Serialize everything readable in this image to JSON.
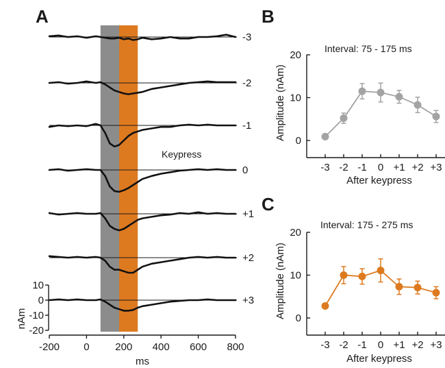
{
  "colors": {
    "gray": "#8c8c8c",
    "orange": "#dd7a1f",
    "trace": "#111111",
    "line_gray": "#a3a3a3"
  },
  "panel_a": {
    "letter": "A",
    "keypress_label": "Keypress",
    "window_gray_ms": [
      75,
      175
    ],
    "window_orange_ms": [
      175,
      275
    ],
    "xlim": [
      -200,
      800
    ],
    "xticks": [
      "-200",
      "0",
      "200",
      "400",
      "600",
      "800"
    ],
    "xlabel": "ms",
    "ylabel": "nAm",
    "yticks": [
      "10",
      "0",
      "-10",
      "-20"
    ],
    "trace_labels": [
      "-3",
      "-2",
      "-1",
      "0",
      "+1",
      "+2",
      "+3"
    ]
  },
  "panel_b": {
    "letter": "B",
    "interval_label": "Interval: 75 - 175 ms",
    "ylabel": "Amplitude (nAm)",
    "xlabel": "After keypress",
    "yticks": [
      "20",
      "10",
      "0"
    ],
    "xticks": [
      "-3",
      "-2",
      "-1",
      "0",
      "+1",
      "+2",
      "+3"
    ]
  },
  "panel_c": {
    "letter": "C",
    "interval_label": "Interval: 175 - 275 ms",
    "ylabel": "Amplitude (nAm)",
    "xlabel": "After keypress",
    "yticks": [
      "20",
      "10",
      "0"
    ],
    "xticks": [
      "-3",
      "-2",
      "-1",
      "0",
      "+1",
      "+2",
      "+3"
    ]
  },
  "chart_data": [
    {
      "type": "line",
      "title": "",
      "xlabel": "ms",
      "ylabel": "nAm",
      "xlim": [
        -200,
        800
      ],
      "ylim": [
        -20,
        10
      ],
      "series": [
        {
          "name": "-3",
          "x": [
            -200,
            -150,
            -100,
            -50,
            0,
            50,
            75,
            100,
            125,
            150,
            175,
            200,
            225,
            250,
            275,
            300,
            350,
            400,
            450,
            500,
            550,
            600,
            650,
            700,
            750,
            800
          ],
          "values": [
            0.5,
            1,
            0,
            0.5,
            -0.5,
            0.5,
            0,
            -0.5,
            -1,
            -1,
            -0.5,
            -1.5,
            -1,
            -2,
            -1.5,
            -0.5,
            -1.5,
            -1,
            0,
            -1,
            -1,
            0,
            0,
            0.5,
            1.5,
            0
          ]
        },
        {
          "name": "-2",
          "x": [
            -200,
            -150,
            -100,
            -50,
            0,
            50,
            75,
            100,
            125,
            150,
            175,
            200,
            225,
            250,
            275,
            300,
            350,
            400,
            450,
            500,
            550,
            600,
            650,
            700,
            750,
            800
          ],
          "values": [
            0,
            0.5,
            -0.5,
            0,
            1,
            0,
            0.5,
            -1,
            -3,
            -5,
            -6,
            -7,
            -7.5,
            -7,
            -6.5,
            -6,
            -4,
            -3,
            -2,
            -1,
            0,
            0.5,
            1,
            0.5,
            0.5,
            0.5
          ]
        },
        {
          "name": "-1",
          "x": [
            -200,
            -150,
            -100,
            -50,
            0,
            50,
            75,
            100,
            125,
            150,
            175,
            200,
            225,
            250,
            275,
            300,
            350,
            400,
            450,
            500,
            550,
            600,
            650,
            700,
            750,
            800
          ],
          "values": [
            -1,
            0,
            -0.5,
            0,
            -0.5,
            1,
            0,
            -5,
            -12,
            -14,
            -13,
            -10,
            -7,
            -5,
            -4,
            -3,
            -2,
            -1,
            -1,
            0,
            0.5,
            0,
            0.5,
            0,
            0,
            0
          ]
        },
        {
          "name": "0",
          "x": [
            -200,
            -150,
            -100,
            -50,
            0,
            50,
            75,
            100,
            125,
            150,
            175,
            200,
            225,
            250,
            275,
            300,
            350,
            400,
            450,
            500,
            550,
            600,
            650,
            700,
            750,
            800
          ],
          "values": [
            0,
            0.5,
            -0.5,
            0,
            0.5,
            0,
            0,
            -4,
            -11,
            -14,
            -14.5,
            -13.5,
            -12,
            -10,
            -8,
            -6,
            -4,
            -2.5,
            -1.5,
            -0.5,
            0,
            0.5,
            0,
            0.5,
            0,
            0
          ]
        },
        {
          "name": "+1",
          "x": [
            -200,
            -150,
            -100,
            -50,
            0,
            50,
            75,
            100,
            125,
            150,
            175,
            200,
            225,
            250,
            275,
            300,
            350,
            400,
            450,
            500,
            550,
            600,
            650,
            700,
            750,
            800
          ],
          "values": [
            0.5,
            -0.5,
            0,
            0.5,
            0,
            0,
            0.5,
            -3,
            -8,
            -10,
            -11,
            -10,
            -8,
            -6,
            -4,
            -3,
            -2,
            -1,
            -0.5,
            0.5,
            0,
            1,
            0,
            0.5,
            0,
            0
          ]
        },
        {
          "name": "+2",
          "x": [
            -200,
            -150,
            -100,
            -50,
            0,
            50,
            75,
            100,
            125,
            150,
            175,
            200,
            225,
            250,
            275,
            300,
            350,
            400,
            450,
            500,
            550,
            600,
            650,
            700,
            750,
            800
          ],
          "values": [
            1,
            0.5,
            0,
            0.5,
            0,
            0.5,
            0,
            -2,
            -6,
            -8,
            -8,
            -9,
            -10,
            -10,
            -8,
            -6,
            -4,
            -3,
            -2,
            -1,
            0,
            0.5,
            0,
            0.5,
            0,
            0
          ]
        },
        {
          "name": "+3",
          "x": [
            -200,
            -150,
            -100,
            -50,
            0,
            50,
            75,
            100,
            125,
            150,
            175,
            200,
            225,
            250,
            275,
            300,
            350,
            400,
            450,
            500,
            550,
            600,
            650,
            700,
            750,
            800
          ],
          "values": [
            0,
            0.5,
            0,
            0.5,
            0,
            0,
            0.5,
            -1,
            -3,
            -5,
            -6,
            -7,
            -7,
            -6.5,
            -5,
            -4,
            -3,
            -2,
            -1,
            -0.5,
            0,
            0,
            0.5,
            0,
            0,
            0
          ]
        }
      ]
    },
    {
      "type": "line",
      "title": "Interval: 75 - 175 ms",
      "xlabel": "After keypress",
      "ylabel": "Amplitude (nAm)",
      "ylim": [
        -4,
        20
      ],
      "categories": [
        "-3",
        "-2",
        "-1",
        "0",
        "+1",
        "+2",
        "+3"
      ],
      "values": [
        0.9,
        5.2,
        11.5,
        11.2,
        10.2,
        8.3,
        5.6
      ],
      "errors": [
        0.6,
        1.2,
        1.8,
        2.2,
        1.5,
        1.8,
        1.4
      ]
    },
    {
      "type": "line",
      "title": "Interval: 175 - 275 ms",
      "xlabel": "After keypress",
      "ylabel": "Amplitude (nAm)",
      "ylim": [
        -4,
        20
      ],
      "categories": [
        "-3",
        "-2",
        "-1",
        "0",
        "+1",
        "+2",
        "+3"
      ],
      "values": [
        2.8,
        10.0,
        9.7,
        11.1,
        7.3,
        7.1,
        5.9
      ],
      "errors": [
        0.5,
        2.0,
        1.8,
        2.7,
        1.8,
        1.5,
        1.4
      ]
    }
  ]
}
